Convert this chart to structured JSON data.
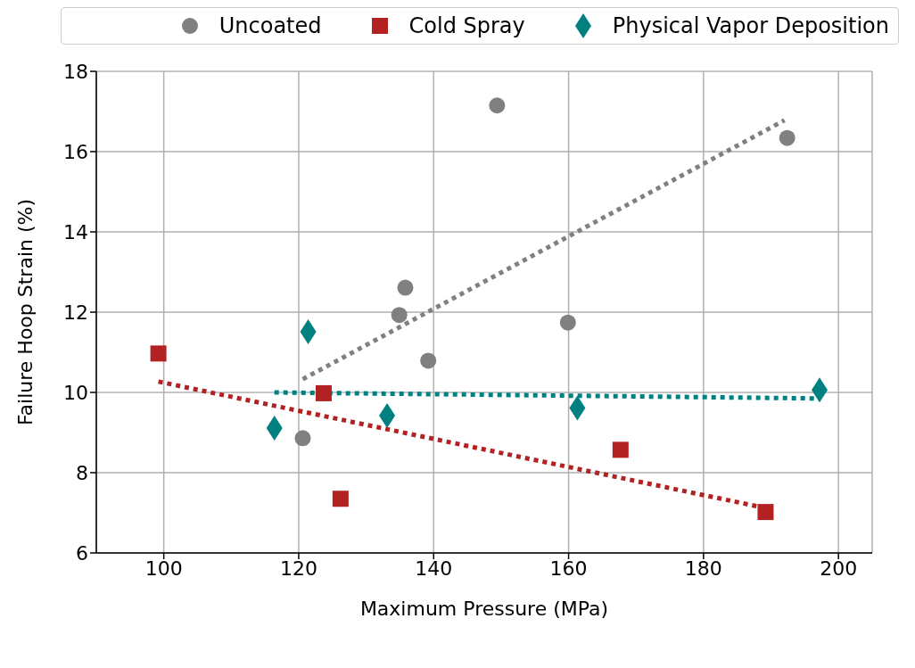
{
  "chart_data": {
    "type": "scatter",
    "xlabel": "Maximum Pressure (MPa)",
    "ylabel": "Failure Hoop Strain (%)",
    "xlim": [
      90,
      205
    ],
    "xticks": [
      100,
      120,
      140,
      160,
      180,
      200
    ],
    "ylim": [
      6,
      18
    ],
    "yticks": [
      6,
      8,
      10,
      12,
      14,
      16,
      18
    ],
    "grid": true,
    "legend": "top",
    "series": [
      {
        "name": "Uncoated",
        "color": "#808080",
        "marker": "circle",
        "x": [
          120.6,
          134.9,
          135.8,
          139.2,
          149.4,
          159.9,
          192.4
        ],
        "values": [
          8.86,
          11.93,
          12.61,
          10.79,
          17.15,
          11.74,
          16.34
        ]
      },
      {
        "name": "Cold Spray",
        "color": "#b22222",
        "marker": "square",
        "x": [
          99.2,
          123.7,
          126.2,
          167.7,
          189.2
        ],
        "values": [
          10.97,
          9.98,
          7.35,
          8.57,
          7.02
        ]
      },
      {
        "name": "Physical Vapor Deposition",
        "color": "#008080",
        "marker": "diamond",
        "x": [
          116.4,
          121.4,
          133.1,
          161.3,
          197.2
        ],
        "values": [
          9.11,
          11.51,
          9.42,
          9.61,
          10.06
        ]
      },
      {
        "type": "line",
        "color": "#808080",
        "line_style": "dotted",
        "marker": "none",
        "x": [
          120.6,
          192
        ],
        "values": [
          10.33,
          16.78
        ]
      },
      {
        "type": "line",
        "color": "#b22222",
        "line_style": "dotted",
        "marker": "none",
        "x": [
          99.2,
          189.2
        ],
        "values": [
          10.27,
          7.12
        ]
      },
      {
        "type": "line",
        "color": "#008080",
        "line_style": "dotted",
        "marker": "none",
        "x": [
          116.4,
          197.2
        ],
        "values": [
          10.0,
          9.85
        ]
      }
    ]
  }
}
